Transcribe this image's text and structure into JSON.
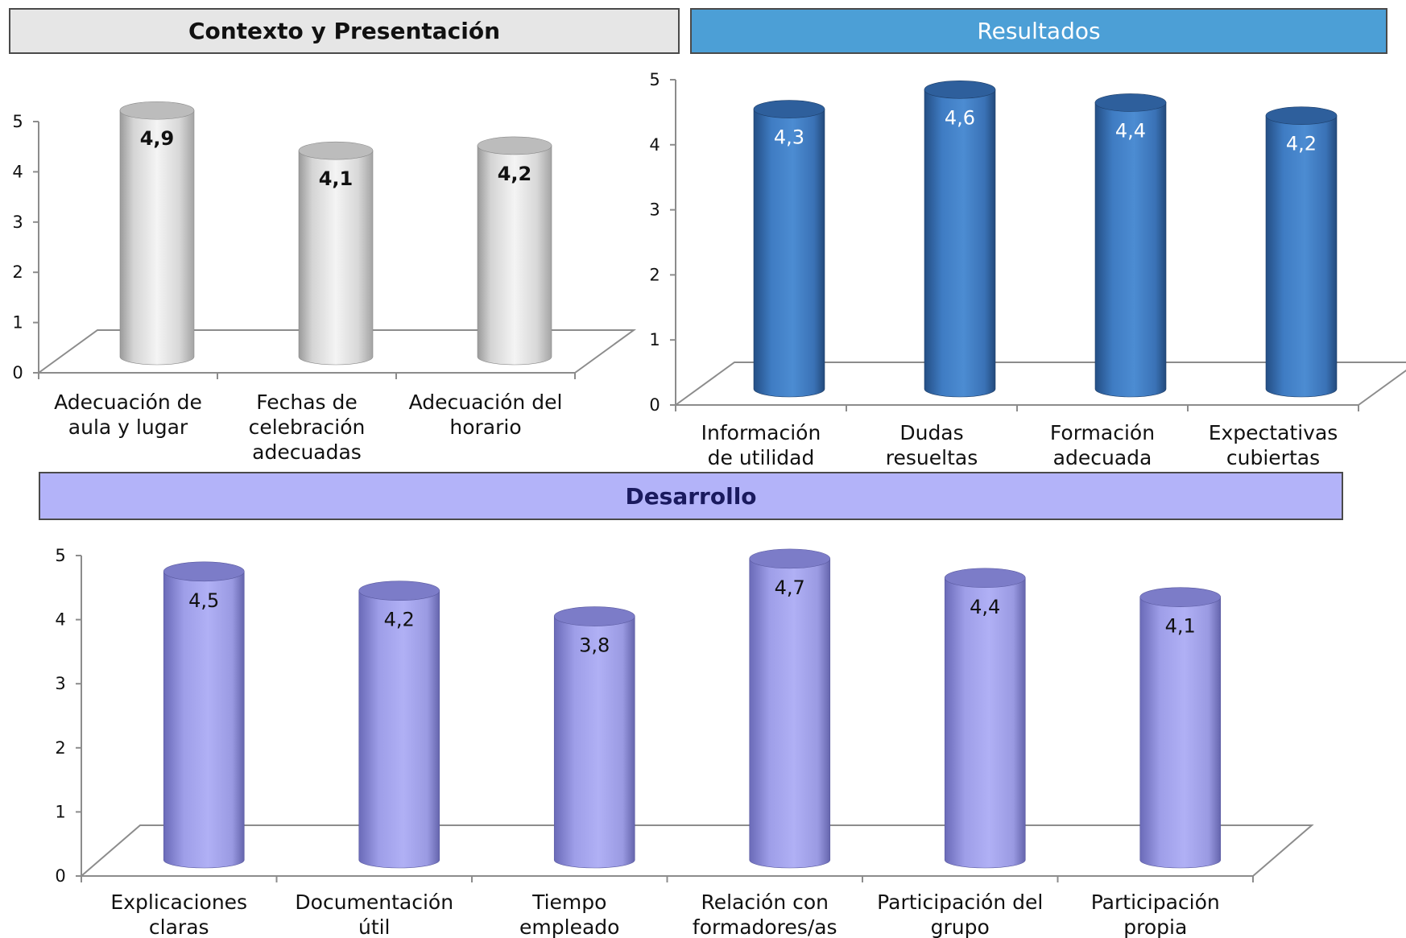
{
  "headers": {
    "contexto": "Contexto y Presentación",
    "resultados": "Resultados",
    "desarrollo": "Desarrollo"
  },
  "chart_data": [
    {
      "type": "bar",
      "title": "Contexto y Presentación",
      "categories": [
        [
          "Adecuación de",
          "aula y lugar"
        ],
        [
          "Fechas de",
          "celebración",
          "adecuadas"
        ],
        [
          "Adecuación del",
          "horario"
        ]
      ],
      "values": [
        4.9,
        4.1,
        4.2
      ],
      "value_labels": [
        "4,9",
        "4,1",
        "4,2"
      ],
      "yticks": [
        "0",
        "1",
        "2",
        "3",
        "4",
        "5"
      ],
      "ylim": [
        0,
        5
      ],
      "color": "#c8c8c8",
      "style": "3d-cylinder",
      "grid": false
    },
    {
      "type": "bar",
      "title": "Resultados",
      "categories": [
        [
          "Información",
          "de utilidad"
        ],
        [
          "Dudas",
          "resueltas"
        ],
        [
          "Formación",
          "adecuada"
        ],
        [
          "Expectativas",
          "cubiertas"
        ]
      ],
      "values": [
        4.3,
        4.6,
        4.4,
        4.2
      ],
      "value_labels": [
        "4,3",
        "4,6",
        "4,4",
        "4,2"
      ],
      "yticks": [
        "0",
        "1",
        "2",
        "3",
        "4",
        "5"
      ],
      "ylim": [
        0,
        5
      ],
      "color": "#3b78bf",
      "style": "3d-cylinder",
      "grid": false
    },
    {
      "type": "bar",
      "title": "Desarrollo",
      "categories": [
        [
          "Explicaciones",
          "claras"
        ],
        [
          "Documentación",
          "útil"
        ],
        [
          "Tiempo",
          "empleado"
        ],
        [
          "Relación con",
          "formadores/as"
        ],
        [
          "Participación del",
          "grupo"
        ],
        [
          "Participación",
          "propia"
        ]
      ],
      "values": [
        4.5,
        4.2,
        3.8,
        4.7,
        4.4,
        4.1
      ],
      "value_labels": [
        "4,5",
        "4,2",
        "3,8",
        "4,7",
        "4,4",
        "4,1"
      ],
      "yticks": [
        "0",
        "1",
        "2",
        "3",
        "4",
        "5"
      ],
      "ylim": [
        0,
        5
      ],
      "color": "#9a9ae6",
      "style": "3d-cylinder",
      "grid": false
    }
  ]
}
